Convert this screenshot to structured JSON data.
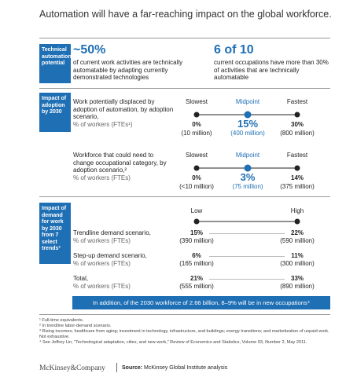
{
  "title": "Automation will have a far-reaching impact on the global workforce.",
  "potential": {
    "label": "Technical automation potential",
    "stats": [
      {
        "value": "~50%",
        "text": "of current work activities are technically automatable by adapting currently demonstrated technologies"
      },
      {
        "value": "6 of 10",
        "text": "current occupations have more than 30% of activities that are technically automatable"
      }
    ]
  },
  "adoption": {
    "label": "Impact of adoption by 2030",
    "rows": [
      {
        "title": "Work potentially displaced by adoption of automation, by adoption scenario,",
        "unit": "% of workers (FTEs¹)",
        "scale": [
          "Slowest",
          "Midpoint",
          "Fastest"
        ],
        "values": [
          {
            "pct": "0%",
            "abs": "(10 million)"
          },
          {
            "pct": "15%",
            "abs": "(400 million)"
          },
          {
            "pct": "30%",
            "abs": "(800 million)"
          }
        ]
      },
      {
        "title": "Workforce that could need to change occupational category, by adoption scenario,²",
        "unit": "% of workers (FTEs)",
        "scale": [
          "Slowest",
          "Midpoint",
          "Fastest"
        ],
        "values": [
          {
            "pct": "0%",
            "abs": "(<10 million)"
          },
          {
            "pct": "3%",
            "abs": "(75 million)"
          },
          {
            "pct": "14%",
            "abs": "(375 million)"
          }
        ]
      }
    ]
  },
  "demand": {
    "label": "Impact of demand for work by 2030 from 7 select trends³",
    "scale": [
      "Low",
      "High"
    ],
    "rows": [
      {
        "title": "Trendline demand scenario,",
        "unit": "% of workers (FTEs)",
        "values": [
          {
            "pct": "15%",
            "abs": "(390 million)"
          },
          {
            "pct": "22%",
            "abs": "(590 million)"
          }
        ]
      },
      {
        "title": "Step-up demand scenario,",
        "unit": "% of workers (FTEs)",
        "values": [
          {
            "pct": "6%",
            "abs": "(165 million)"
          },
          {
            "pct": "11%",
            "abs": "(300 million)"
          }
        ]
      },
      {
        "title": "Total,",
        "unit": "% of workers (FTEs)",
        "values": [
          {
            "pct": "21%",
            "abs": "(555 million)"
          },
          {
            "pct": "33%",
            "abs": "(890 million)"
          }
        ]
      }
    ],
    "banner": "In addition, of the 2030 workforce of 2.66 billion, 8–9% will be in new occupations⁴"
  },
  "footnotes": [
    "¹ Full-time equivalents.",
    "² In trendline labor-demand scenario.",
    "³ Rising incomes; healthcare from aging; investment in technology, infrastructure, and buildings; energy transitions; and marketization of unpaid work. Not exhaustive.",
    "⁴ See Jeffrey Lin, “Technological adaptation, cities, and new work,” Review of Economics and Statistics, Volume 93, Number 2, May 2011."
  ],
  "footer": {
    "brand": "McKinsey&Company",
    "source_label": "Source:",
    "source": "McKinsey Global Institute analysis"
  }
}
